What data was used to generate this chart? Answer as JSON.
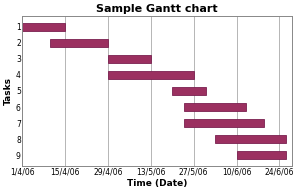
{
  "title": "Sample Gantt chart",
  "xlabel": "Time (Date)",
  "ylabel": "Tasks",
  "bar_color": "#9B3060",
  "bar_edge_color": "#7A2050",
  "background_color": "#ffffff",
  "plot_bg_color": "#ffffff",
  "tasks": [
    "1",
    "2",
    "3",
    "4",
    "5",
    "6",
    "7",
    "8",
    "9"
  ],
  "starts": [
    0,
    9,
    28,
    28,
    49,
    53,
    53,
    63,
    70
  ],
  "durations": [
    14,
    19,
    14,
    28,
    11,
    20,
    26,
    23,
    16
  ],
  "x_tick_labels": [
    "1/4/06",
    "15/4/06",
    "29/4/06",
    "13/5/06",
    "27/5/06",
    "10/6/06",
    "24/6/06"
  ],
  "x_tick_positions": [
    0,
    14,
    28,
    42,
    56,
    70,
    84
  ],
  "xlim": [
    0,
    88
  ],
  "ylim": [
    0.35,
    9.65
  ],
  "title_fontsize": 8,
  "axis_label_fontsize": 6.5,
  "tick_fontsize": 5.5,
  "bar_height": 0.5,
  "grid_color": "#aaaaaa",
  "spine_color": "#888888"
}
